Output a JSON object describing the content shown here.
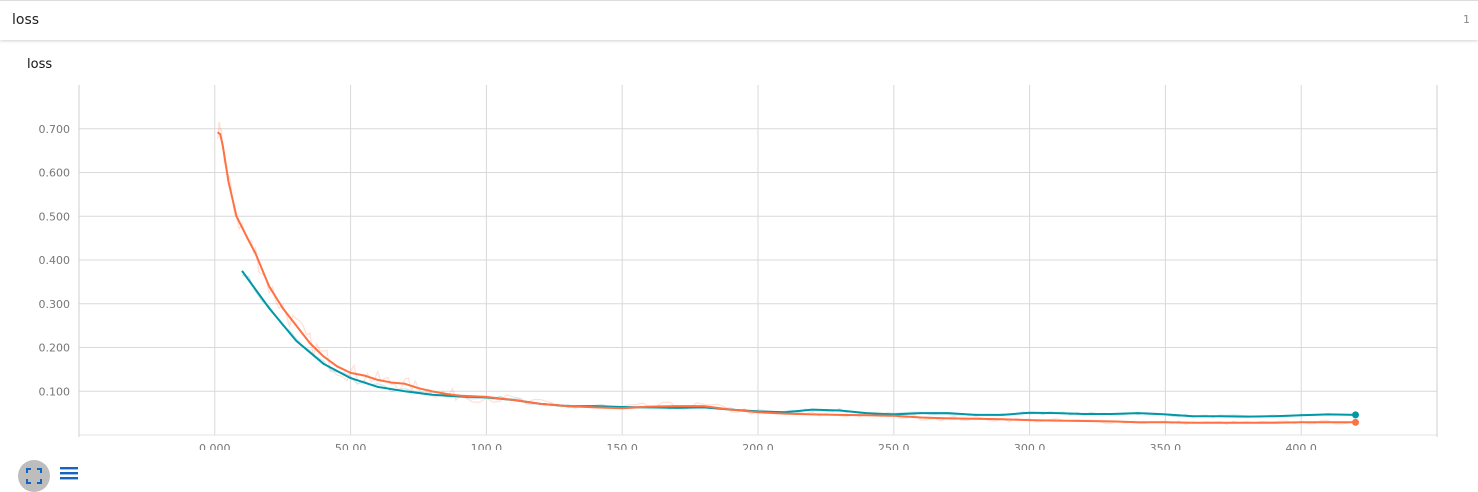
{
  "header": {
    "title": "loss",
    "count": "1"
  },
  "card": {
    "title": "loss"
  },
  "icons": {
    "expand": "fullscreen-icon",
    "menu": "menu-lines-icon"
  },
  "colors": {
    "series_a": "#0097a7",
    "series_b": "#ff7043",
    "grid": "#d9d9d9"
  },
  "chart_data": {
    "type": "line",
    "title": "loss",
    "xlabel": "",
    "ylabel": "",
    "xlim": [
      -50,
      450
    ],
    "ylim": [
      0,
      0.8
    ],
    "grid": true,
    "x_ticks": [
      0,
      50,
      100,
      150,
      200,
      250,
      300,
      350,
      400
    ],
    "x_tick_labels": [
      "0.000",
      "50.00",
      "100.0",
      "150.0",
      "200.0",
      "250.0",
      "300.0",
      "350.0",
      "400.0"
    ],
    "y_ticks": [
      0.1,
      0.2,
      0.3,
      0.4,
      0.5,
      0.6,
      0.7
    ],
    "y_tick_labels": [
      "0.100",
      "0.200",
      "0.300",
      "0.400",
      "0.500",
      "0.600",
      "0.700"
    ],
    "series": [
      {
        "color": "#0097a7",
        "x": [
          10,
          20,
          30,
          40,
          50,
          60,
          70,
          80,
          90,
          100,
          110,
          120,
          130,
          140,
          150,
          160,
          170,
          180,
          190,
          200,
          210,
          220,
          230,
          240,
          250,
          260,
          270,
          280,
          290,
          300,
          310,
          320,
          330,
          340,
          350,
          360,
          370,
          380,
          390,
          400,
          410,
          420
        ],
        "y": [
          0.375,
          0.29,
          0.215,
          0.163,
          0.13,
          0.11,
          0.1,
          0.092,
          0.088,
          0.086,
          0.08,
          0.071,
          0.066,
          0.066,
          0.064,
          0.063,
          0.062,
          0.063,
          0.058,
          0.054,
          0.052,
          0.058,
          0.056,
          0.05,
          0.047,
          0.05,
          0.05,
          0.046,
          0.046,
          0.051,
          0.05,
          0.048,
          0.048,
          0.05,
          0.047,
          0.043,
          0.043,
          0.042,
          0.043,
          0.045,
          0.047,
          0.046
        ]
      },
      {
        "color": "#ff7043",
        "x": [
          1,
          2,
          3,
          5,
          8,
          12,
          15,
          20,
          25,
          30,
          35,
          40,
          45,
          50,
          55,
          60,
          65,
          70,
          75,
          80,
          85,
          90,
          100,
          110,
          120,
          130,
          140,
          150,
          160,
          170,
          180,
          190,
          200,
          210,
          220,
          230,
          240,
          250,
          260,
          270,
          280,
          290,
          300,
          310,
          320,
          330,
          340,
          350,
          360,
          370,
          380,
          390,
          400,
          410,
          420
        ],
        "y": [
          0.692,
          0.688,
          0.66,
          0.58,
          0.5,
          0.45,
          0.415,
          0.34,
          0.29,
          0.25,
          0.21,
          0.18,
          0.157,
          0.142,
          0.136,
          0.126,
          0.12,
          0.117,
          0.107,
          0.1,
          0.094,
          0.09,
          0.087,
          0.08,
          0.071,
          0.066,
          0.063,
          0.061,
          0.065,
          0.066,
          0.066,
          0.058,
          0.052,
          0.049,
          0.047,
          0.046,
          0.045,
          0.044,
          0.04,
          0.038,
          0.037,
          0.036,
          0.034,
          0.033,
          0.032,
          0.031,
          0.029,
          0.029,
          0.028,
          0.028,
          0.028,
          0.028,
          0.029,
          0.029,
          0.029
        ]
      }
    ]
  }
}
